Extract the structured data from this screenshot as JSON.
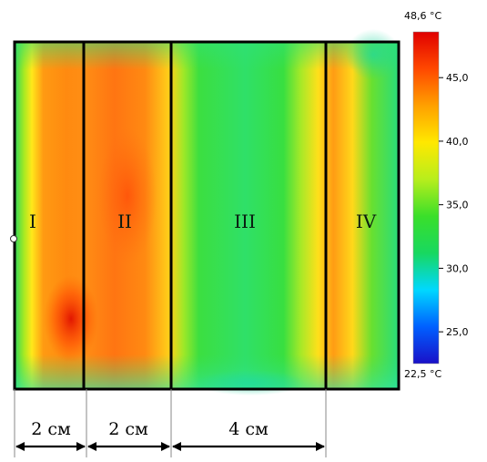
{
  "scale": {
    "max_label": "48,6 °C",
    "min_label": "22,5 °C",
    "ticks": [
      {
        "label": "45,0",
        "value": 45.0
      },
      {
        "label": "40,0",
        "value": 40.0
      },
      {
        "label": "35,0",
        "value": 35.0
      },
      {
        "label": "30,0",
        "value": 30.0
      },
      {
        "label": "25,0",
        "value": 25.0
      }
    ],
    "min_value": 22.5,
    "max_value": 48.6,
    "colors": [
      "#1a10c8",
      "#0060ff",
      "#00d8ff",
      "#18d860",
      "#3adf2a",
      "#b8ee1c",
      "#ffe800",
      "#ffa000",
      "#ff4800",
      "#e00000"
    ]
  },
  "zones": [
    {
      "label": "I"
    },
    {
      "label": "II"
    },
    {
      "label": "III"
    },
    {
      "label": "IV"
    }
  ],
  "dimensions": [
    {
      "label": "2 см"
    },
    {
      "label": "2 см"
    },
    {
      "label": "4 см"
    }
  ]
}
